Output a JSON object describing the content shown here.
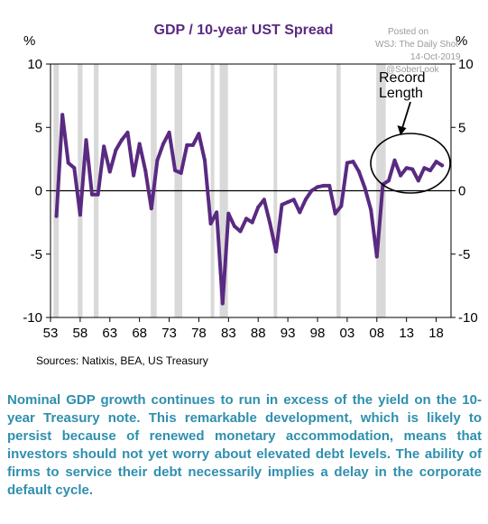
{
  "chart_data": {
    "type": "line",
    "title": "GDP / 10-year UST Spread",
    "left_unit": "%",
    "right_unit": "%",
    "ylim": [
      -10,
      10
    ],
    "yticks": [
      10,
      5,
      0,
      -5,
      -10
    ],
    "xlim": [
      1953,
      2020.5
    ],
    "xtick_values": [
      1953,
      1958,
      1963,
      1968,
      1973,
      1978,
      1983,
      1988,
      1993,
      1998,
      2003,
      2008,
      2013,
      2018
    ],
    "xtick_labels": [
      "53",
      "58",
      "63",
      "68",
      "73",
      "78",
      "83",
      "88",
      "93",
      "98",
      "03",
      "08",
      "13",
      "18"
    ],
    "recessions": [
      [
        1953.5,
        1954.4
      ],
      [
        1957.6,
        1958.4
      ],
      [
        1960.3,
        1961.1
      ],
      [
        1969.9,
        1970.9
      ],
      [
        1973.9,
        1975.2
      ],
      [
        1980.0,
        1980.6
      ],
      [
        1981.5,
        1982.9
      ],
      [
        1990.6,
        1991.2
      ],
      [
        2001.2,
        2001.9
      ],
      [
        2007.9,
        2009.5
      ]
    ],
    "recession_color": "#d9d9d9",
    "line_color": "#5a2a82",
    "series": [
      {
        "x": [
          1954,
          1955,
          1956,
          1957,
          1958,
          1959,
          1960,
          1961,
          1962,
          1963,
          1964,
          1965,
          1966,
          1967,
          1968,
          1969,
          1970,
          1971,
          1972,
          1973,
          1974,
          1975,
          1976,
          1977,
          1978,
          1979,
          1980,
          1981,
          1982,
          1983,
          1984,
          1985,
          1986,
          1987,
          1988,
          1989,
          1990,
          1991,
          1992,
          1993,
          1994,
          1995,
          1996,
          1997,
          1998,
          1999,
          2000,
          2001,
          2002,
          2003,
          2004,
          2005,
          2006,
          2007,
          2008,
          2009,
          2010,
          2011,
          2012,
          2013,
          2014,
          2015,
          2016,
          2017,
          2018,
          2019
        ],
        "values": [
          -2,
          6,
          2.2,
          1.8,
          -1.9,
          4,
          -0.3,
          -0.3,
          3.5,
          1.5,
          3.2,
          4,
          4.6,
          1.2,
          3.7,
          1.6,
          -1.4,
          2.4,
          3.7,
          4.6,
          1.6,
          1.4,
          3.6,
          3.6,
          4.5,
          2.4,
          -2.6,
          -1.7,
          -8.9,
          -1.8,
          -2.8,
          -3.2,
          -2.2,
          -2.5,
          -1.3,
          -0.7,
          -2.6,
          -4.8,
          -1.1,
          -0.9,
          -0.7,
          -1.7,
          -0.7,
          0,
          0.3,
          0.4,
          0.4,
          -1.8,
          -1.2,
          2.2,
          2.3,
          1.5,
          0.2,
          -1.5,
          -5.2,
          0.5,
          0.8,
          2.4,
          1.2,
          1.8,
          1.7,
          0.8,
          1.8,
          1.6,
          2.3,
          2
        ]
      }
    ],
    "annotation": {
      "lines": [
        "Record",
        "Length"
      ]
    },
    "source": "Sources:  Natixis, BEA, US Treasury",
    "watermark": [
      "Posted on",
      "WSJ: The Daily Shot",
      "14-Oct-2019",
      "@SoberLook"
    ]
  },
  "caption": "Nominal GDP growth continues to run in excess of the yield on the 10-year Treasury note. This remarkable development, which is likely to persist because of renewed monetary accommodation, means that investors should not yet worry about elevated debt levels. The ability of firms to service their debt necessarily implies a delay in the corporate default cycle."
}
